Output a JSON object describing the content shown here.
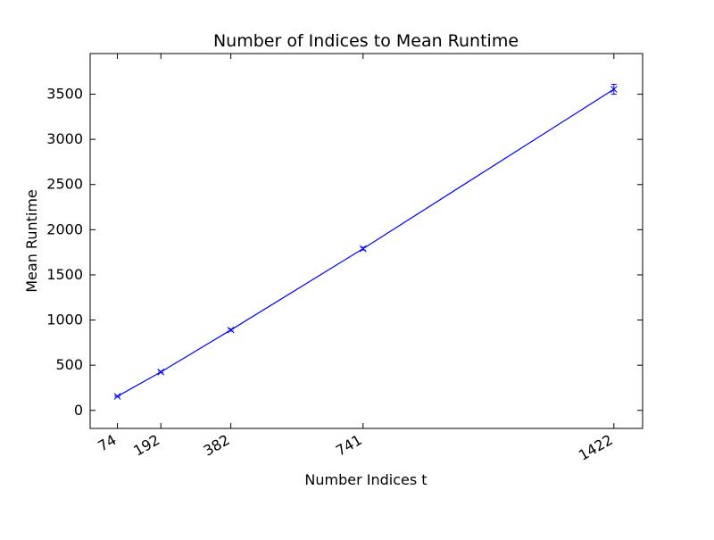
{
  "chart_data": {
    "type": "line",
    "title": "Number of Indices to Mean Runtime",
    "xlabel": "Number Indices t",
    "ylabel": "Mean Runtime",
    "x": [
      74,
      192,
      382,
      741,
      1422
    ],
    "x_tick_labels": [
      "74",
      "192",
      "382",
      "741",
      "1422"
    ],
    "xlim": [
      0,
      1500
    ],
    "ylim": [
      -200,
      3950
    ],
    "y_ticks": [
      0,
      500,
      1000,
      1500,
      2000,
      2500,
      3000,
      3500
    ],
    "y_tick_labels": [
      "0",
      "500",
      "1000",
      "1500",
      "2000",
      "2500",
      "3000",
      "3500"
    ],
    "series": [
      {
        "values": [
          155,
          425,
          890,
          1790,
          3555
        ],
        "error": [
          8,
          10,
          12,
          15,
          55
        ],
        "color": "#0000ff",
        "marker": "x"
      }
    ],
    "grid": false,
    "legend": "none"
  }
}
